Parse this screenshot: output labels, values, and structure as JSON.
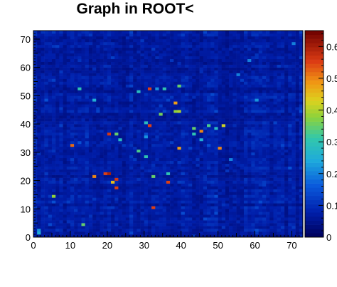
{
  "chart_data": {
    "type": "heatmap",
    "title": "Graph in ROOT<",
    "xlabel": "",
    "ylabel": "",
    "xlim": [
      0,
      73
    ],
    "ylim": [
      0,
      73
    ],
    "zlim": [
      0,
      0.65
    ],
    "x_ticks": [
      "0",
      "10",
      "20",
      "30",
      "40",
      "50",
      "60",
      "70"
    ],
    "y_ticks": [
      "0",
      "10",
      "20",
      "30",
      "40",
      "50",
      "60",
      "70"
    ],
    "z_ticks": [
      "0",
      "0.1",
      "0.2",
      "0.3",
      "0.4",
      "0.5",
      "0.6"
    ],
    "palette": "rainbow (dark blue to dark red)",
    "grid": false,
    "background_level": 0.07,
    "bright_cells": [
      {
        "x": 12.5,
        "y": 52.5,
        "z": 0.3
      },
      {
        "x": 16.5,
        "y": 48.5,
        "z": 0.25
      },
      {
        "x": 28.5,
        "y": 51.5,
        "z": 0.28
      },
      {
        "x": 31.5,
        "y": 52.5,
        "z": 0.55
      },
      {
        "x": 33.5,
        "y": 52.5,
        "z": 0.22
      },
      {
        "x": 35.5,
        "y": 52.5,
        "z": 0.3
      },
      {
        "x": 39.5,
        "y": 53.5,
        "z": 0.35
      },
      {
        "x": 38.5,
        "y": 47.5,
        "z": 0.48
      },
      {
        "x": 39.5,
        "y": 44.5,
        "z": 0.4
      },
      {
        "x": 38.5,
        "y": 44.5,
        "z": 0.38
      },
      {
        "x": 34.5,
        "y": 43.5,
        "z": 0.36
      },
      {
        "x": 30.5,
        "y": 40.5,
        "z": 0.28
      },
      {
        "x": 31.5,
        "y": 39.5,
        "z": 0.55
      },
      {
        "x": 47.5,
        "y": 39.5,
        "z": 0.33
      },
      {
        "x": 51.5,
        "y": 39.5,
        "z": 0.42
      },
      {
        "x": 43.5,
        "y": 38.5,
        "z": 0.35
      },
      {
        "x": 45.5,
        "y": 37.5,
        "z": 0.5
      },
      {
        "x": 49.5,
        "y": 38.5,
        "z": 0.28
      },
      {
        "x": 43.5,
        "y": 36.5,
        "z": 0.3
      },
      {
        "x": 45.5,
        "y": 34.5,
        "z": 0.25
      },
      {
        "x": 50.5,
        "y": 31.5,
        "z": 0.5
      },
      {
        "x": 39.5,
        "y": 31.5,
        "z": 0.48
      },
      {
        "x": 20.5,
        "y": 36.5,
        "z": 0.56
      },
      {
        "x": 22.5,
        "y": 36.5,
        "z": 0.35
      },
      {
        "x": 23.5,
        "y": 34.5,
        "z": 0.28
      },
      {
        "x": 10.5,
        "y": 32.5,
        "z": 0.52
      },
      {
        "x": 28.5,
        "y": 30.5,
        "z": 0.33
      },
      {
        "x": 30.5,
        "y": 28.5,
        "z": 0.3
      },
      {
        "x": 30.5,
        "y": 35.5,
        "z": 0.22
      },
      {
        "x": 16.5,
        "y": 21.5,
        "z": 0.5
      },
      {
        "x": 19.5,
        "y": 22.5,
        "z": 0.55
      },
      {
        "x": 20.5,
        "y": 22.5,
        "z": 0.6
      },
      {
        "x": 22.5,
        "y": 20.5,
        "z": 0.56
      },
      {
        "x": 22.5,
        "y": 17.5,
        "z": 0.55
      },
      {
        "x": 21.5,
        "y": 19.5,
        "z": 0.45
      },
      {
        "x": 32.5,
        "y": 21.5,
        "z": 0.35
      },
      {
        "x": 36.5,
        "y": 19.5,
        "z": 0.55
      },
      {
        "x": 36.5,
        "y": 22.5,
        "z": 0.3
      },
      {
        "x": 32.5,
        "y": 10.5,
        "z": 0.55
      },
      {
        "x": 5.5,
        "y": 14.5,
        "z": 0.38
      },
      {
        "x": 13.5,
        "y": 4.5,
        "z": 0.35
      },
      {
        "x": 1.5,
        "y": 1.5,
        "z": 0.25
      },
      {
        "x": 1.5,
        "y": 2.5,
        "z": 0.22
      },
      {
        "x": 58.5,
        "y": 62.5,
        "z": 0.2
      },
      {
        "x": 60.5,
        "y": 48.5,
        "z": 0.22
      },
      {
        "x": 70.5,
        "y": 68.5,
        "z": 0.2
      },
      {
        "x": 55.5,
        "y": 57.5,
        "z": 0.2
      },
      {
        "x": 53.5,
        "y": 27.5,
        "z": 0.2
      }
    ]
  }
}
